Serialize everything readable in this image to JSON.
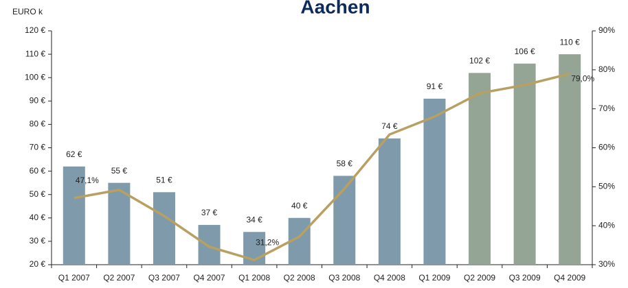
{
  "chart_data": {
    "type": "bar-line",
    "title": "Aachen",
    "y_label": "EURO k",
    "categories": [
      "Q1 2007",
      "Q2 2007",
      "Q3 2007",
      "Q4 2007",
      "Q1 2008",
      "Q2 2008",
      "Q3 2008",
      "Q4 2008",
      "Q1 2009",
      "Q2 2009",
      "Q3 2009",
      "Q4 2009"
    ],
    "series": [
      {
        "type": "bar",
        "colors": [
          "#7f9aab",
          "#7f9aab",
          "#7f9aab",
          "#7f9aab",
          "#7f9aab",
          "#7f9aab",
          "#7f9aab",
          "#7f9aab",
          "#7f9aab",
          "#94a595",
          "#94a595",
          "#94a595"
        ],
        "values": [
          62,
          55,
          51,
          37,
          34,
          40,
          58,
          74,
          91,
          102,
          106,
          110
        ],
        "value_labels": [
          "62 €",
          "55 €",
          "51 €",
          "37 €",
          "34 €",
          "40 €",
          "58 €",
          "74 €",
          "91 €",
          "102 €",
          "106 €",
          "110 €"
        ]
      },
      {
        "type": "line",
        "axis": "y2",
        "color": "#b8a062",
        "values": [
          47.1,
          49.2,
          42.5,
          34.6,
          31.2,
          37.2,
          49.5,
          63.4,
          68,
          74,
          76.1,
          79.0
        ],
        "value_labels": [
          "47,1%",
          null,
          null,
          null,
          "31,2%",
          null,
          null,
          null,
          null,
          null,
          null,
          "79,0%"
        ]
      }
    ],
    "ylim": [
      20,
      120
    ],
    "yticks": [
      {
        "value": 20,
        "label": "20 €"
      },
      {
        "value": 30,
        "label": "30 €"
      },
      {
        "value": 40,
        "label": "40 €"
      },
      {
        "value": 50,
        "label": "50 €"
      },
      {
        "value": 60,
        "label": "60 €"
      },
      {
        "value": 70,
        "label": "70 €"
      },
      {
        "value": 80,
        "label": "80 €"
      },
      {
        "value": 90,
        "label": "90 €"
      },
      {
        "value": 100,
        "label": "100 €"
      },
      {
        "value": 110,
        "label": "110 €"
      },
      {
        "value": 120,
        "label": "120 €"
      }
    ],
    "y2lim": [
      30,
      90
    ],
    "y2ticks": [
      {
        "value": 30,
        "label": "30%"
      },
      {
        "value": 40,
        "label": "40%"
      },
      {
        "value": 50,
        "label": "50%"
      },
      {
        "value": 60,
        "label": "60%"
      },
      {
        "value": 70,
        "label": "70%"
      },
      {
        "value": 80,
        "label": "80%"
      },
      {
        "value": 90,
        "label": "90%"
      }
    ]
  }
}
